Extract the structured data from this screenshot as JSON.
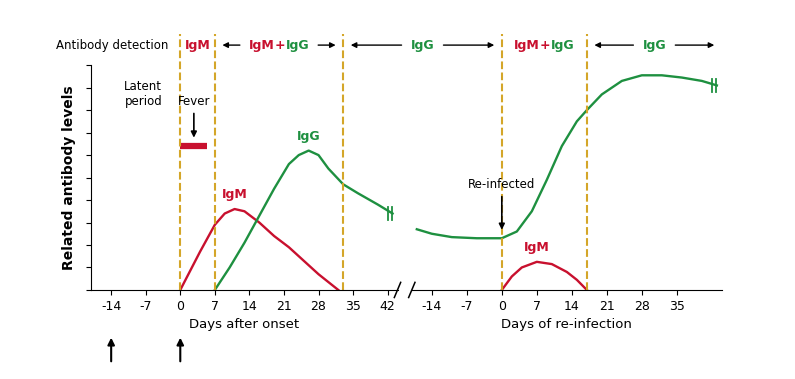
{
  "antibody_detection": {
    "title": "Antibody detection",
    "segments": [
      {
        "label": "IgM",
        "start": [
          0,
          0
        ],
        "end": [
          0,
          7
        ]
      },
      {
        "label": "IgM+IgG",
        "start": [
          0,
          7
        ],
        "end": [
          0,
          33
        ]
      },
      {
        "label": "IgG",
        "start": [
          0,
          33
        ],
        "end": [
          1,
          0
        ]
      },
      {
        "label": "IgM+IgG",
        "start": [
          1,
          0
        ],
        "end": [
          1,
          17
        ]
      },
      {
        "label": "IgG",
        "start": [
          1,
          17
        ],
        "end": [
          1,
          null
        ]
      }
    ]
  },
  "chart_data": [
    {
      "type": "line",
      "xlabel": "Days after onset",
      "ylabel": "Related antibody levels",
      "xlim": [
        -18,
        44
      ],
      "xticks": [
        -14,
        -7,
        0,
        7,
        14,
        21,
        28,
        35,
        42
      ],
      "ylim": [
        0,
        10
      ],
      "yticks": [
        0,
        1,
        2,
        3,
        4,
        5,
        6,
        7,
        8,
        9,
        10
      ],
      "tick_labels": "x",
      "series": [
        {
          "name": "IgM",
          "color": "#c8102e",
          "x": [
            0,
            4,
            7,
            9,
            11,
            13,
            16,
            19,
            22,
            25,
            28,
            32
          ],
          "values": [
            0,
            1.7,
            2.9,
            3.4,
            3.6,
            3.5,
            3.0,
            2.4,
            1.9,
            1.3,
            0.7,
            0
          ]
        },
        {
          "name": "IgG",
          "color": "#1e9040",
          "x": [
            7,
            10,
            13,
            16,
            19,
            22,
            24,
            26,
            28,
            30,
            33,
            36,
            40,
            43
          ],
          "values": [
            0,
            1.0,
            2.1,
            3.3,
            4.5,
            5.6,
            6.0,
            6.2,
            6.0,
            5.4,
            4.7,
            4.3,
            3.8,
            3.4
          ]
        }
      ],
      "fever": {
        "label": "Fever",
        "from": 0,
        "to": 5.5,
        "level": 6.4
      },
      "annotations": [
        "Latent\nperiod"
      ],
      "event_arrows": [
        -14,
        0
      ]
    },
    {
      "type": "line",
      "xlabel": "Days of re-infection",
      "xlim": [
        -18,
        44
      ],
      "xticks": [
        -14,
        -7,
        0,
        7,
        14,
        21,
        28,
        35
      ],
      "ylim": [
        0,
        10
      ],
      "tick_labels": "x",
      "series": [
        {
          "color": "#1e9040",
          "x": [
            -17,
            -14,
            -10,
            -5,
            0,
            3,
            6,
            9,
            12,
            15,
            17,
            20,
            24,
            28,
            32,
            36,
            40,
            43
          ],
          "values": [
            2.7,
            2.5,
            2.35,
            2.3,
            2.3,
            2.6,
            3.5,
            4.9,
            6.4,
            7.5,
            8.0,
            8.7,
            9.3,
            9.55,
            9.55,
            9.45,
            9.3,
            9.1
          ]
        },
        {
          "name": "IgM",
          "color": "#c8102e",
          "x": [
            0,
            2,
            4,
            7,
            10,
            13,
            15,
            17
          ],
          "values": [
            0,
            0.6,
            1.0,
            1.25,
            1.15,
            0.8,
            0.45,
            0
          ]
        }
      ],
      "event": {
        "label": "Re-infected",
        "x": 0
      }
    }
  ]
}
